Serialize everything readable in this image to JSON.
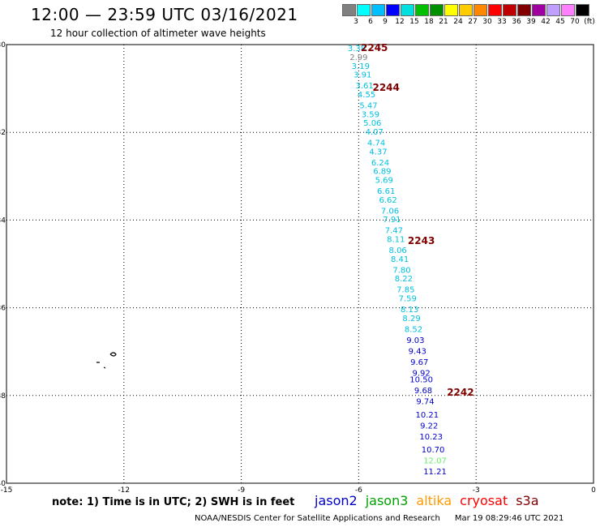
{
  "header": {
    "title": "12:00 — 23:59 UTC 03/16/2021",
    "subtitle": "12 hour collection of altimeter wave heights"
  },
  "colorbar": {
    "colors": [
      "#808080",
      "#00ffff",
      "#00bfff",
      "#0000ff",
      "#00e0e0",
      "#00c000",
      "#009000",
      "#ffff00",
      "#ffcc00",
      "#ff8800",
      "#ff0000",
      "#c00000",
      "#800000",
      "#a000a0",
      "#c0a0ff",
      "#ff80ff",
      "#000000"
    ],
    "labels": [
      "3",
      "6",
      "9",
      "12",
      "15",
      "18",
      "21",
      "24",
      "27",
      "30",
      "33",
      "36",
      "39",
      "42",
      "45",
      "70",
      "(ft)"
    ]
  },
  "chart_data": {
    "type": "scatter",
    "title": "12:00 — 23:59 UTC 03/16/2021",
    "subtitle": "12 hour collection of altimeter wave heights",
    "xlim": [
      -15,
      0
    ],
    "ylim": [
      -40,
      -30
    ],
    "x_ticks": [
      "-15",
      "-12",
      "-9",
      "-6",
      "-3",
      "0"
    ],
    "y_ticks": [
      "-30",
      "-32",
      "-34",
      "-36",
      "-38",
      "-40"
    ],
    "grid": true,
    "points": [
      {
        "lon": -6.05,
        "lat": -30.15,
        "swh": "3.38",
        "color": "#00c0e0"
      },
      {
        "lon": -6.0,
        "lat": -30.35,
        "swh": "2.99",
        "color": "#808080"
      },
      {
        "lon": -5.95,
        "lat": -30.55,
        "swh": "3.19",
        "color": "#00c0e0"
      },
      {
        "lon": -5.9,
        "lat": -30.75,
        "swh": "3.91",
        "color": "#00c0e0"
      },
      {
        "lon": -5.85,
        "lat": -31.0,
        "swh": "3.61",
        "color": "#00c0e0"
      },
      {
        "lon": -5.8,
        "lat": -31.2,
        "swh": "4.55",
        "color": "#00c0e0"
      },
      {
        "lon": -5.75,
        "lat": -31.45,
        "swh": "5.47",
        "color": "#00c0e0"
      },
      {
        "lon": -5.7,
        "lat": -31.65,
        "swh": "3.59",
        "color": "#00c0e0"
      },
      {
        "lon": -5.65,
        "lat": -31.85,
        "swh": "5.06",
        "color": "#00c0e0"
      },
      {
        "lon": -5.6,
        "lat": -32.05,
        "swh": "4.07",
        "color": "#00c0e0"
      },
      {
        "lon": -5.55,
        "lat": -32.3,
        "swh": "4.74",
        "color": "#00c0e0"
      },
      {
        "lon": -5.5,
        "lat": -32.5,
        "swh": "4.37",
        "color": "#00c0e0"
      },
      {
        "lon": -5.45,
        "lat": -32.75,
        "swh": "6.24",
        "color": "#00c0e0"
      },
      {
        "lon": -5.4,
        "lat": -32.95,
        "swh": "6.89",
        "color": "#00c0e0"
      },
      {
        "lon": -5.35,
        "lat": -33.15,
        "swh": "5.69",
        "color": "#00c0e0"
      },
      {
        "lon": -5.3,
        "lat": -33.4,
        "swh": "6.61",
        "color": "#00c0e0"
      },
      {
        "lon": -5.25,
        "lat": -33.6,
        "swh": "6.62",
        "color": "#00c0e0"
      },
      {
        "lon": -5.2,
        "lat": -33.85,
        "swh": "7.06",
        "color": "#00c0e0"
      },
      {
        "lon": -5.15,
        "lat": -34.05,
        "swh": "7.91",
        "color": "#00c0e0"
      },
      {
        "lon": -5.1,
        "lat": -34.3,
        "swh": "7.47",
        "color": "#00c0e0"
      },
      {
        "lon": -5.05,
        "lat": -34.5,
        "swh": "8.11",
        "color": "#00c0e0"
      },
      {
        "lon": -5.0,
        "lat": -34.75,
        "swh": "8.06",
        "color": "#00c0e0"
      },
      {
        "lon": -4.95,
        "lat": -34.95,
        "swh": "8.41",
        "color": "#00c0e0"
      },
      {
        "lon": -4.9,
        "lat": -35.2,
        "swh": "7.80",
        "color": "#00c0e0"
      },
      {
        "lon": -4.85,
        "lat": -35.4,
        "swh": "8.22",
        "color": "#00c0e0"
      },
      {
        "lon": -4.8,
        "lat": -35.65,
        "swh": "7.85",
        "color": "#00c0e0"
      },
      {
        "lon": -4.75,
        "lat": -35.85,
        "swh": "7.59",
        "color": "#00c0e0"
      },
      {
        "lon": -4.7,
        "lat": -36.1,
        "swh": "8.13",
        "color": "#00c0e0"
      },
      {
        "lon": -4.65,
        "lat": -36.3,
        "swh": "8.29",
        "color": "#00c0e0"
      },
      {
        "lon": -4.6,
        "lat": -36.55,
        "swh": "8.52",
        "color": "#00c0e0"
      },
      {
        "lon": -4.55,
        "lat": -36.8,
        "swh": "9.03",
        "color": "#0000cc"
      },
      {
        "lon": -4.5,
        "lat": -37.05,
        "swh": "9.43",
        "color": "#0000cc"
      },
      {
        "lon": -4.45,
        "lat": -37.3,
        "swh": "9.67",
        "color": "#0000cc"
      },
      {
        "lon": -4.4,
        "lat": -37.55,
        "swh": "9.92",
        "color": "#0000cc"
      },
      {
        "lon": -4.4,
        "lat": -37.7,
        "swh": "10.50",
        "color": "#0000cc"
      },
      {
        "lon": -4.35,
        "lat": -37.95,
        "swh": "9.68",
        "color": "#0000cc"
      },
      {
        "lon": -4.3,
        "lat": -38.2,
        "swh": "9.74",
        "color": "#0000cc"
      },
      {
        "lon": -4.25,
        "lat": -38.5,
        "swh": "10.21",
        "color": "#0000cc"
      },
      {
        "lon": -4.2,
        "lat": -38.75,
        "swh": "9.22",
        "color": "#0000cc"
      },
      {
        "lon": -4.15,
        "lat": -39.0,
        "swh": "10.23",
        "color": "#0000cc"
      },
      {
        "lon": -4.1,
        "lat": -39.3,
        "swh": "10.70",
        "color": "#0000cc"
      },
      {
        "lon": -4.05,
        "lat": -39.55,
        "swh": "12.07",
        "color": "#66ee66"
      },
      {
        "lon": -4.05,
        "lat": -39.8,
        "swh": "11.21",
        "color": "#0000cc"
      }
    ],
    "time_labels": [
      {
        "lon": -5.6,
        "lat": -30.15,
        "text": "2245"
      },
      {
        "lon": -5.3,
        "lat": -31.05,
        "text": "2244"
      },
      {
        "lon": -4.4,
        "lat": -34.55,
        "text": "2243"
      },
      {
        "lon": -3.4,
        "lat": -38.0,
        "text": "2242"
      }
    ]
  },
  "note": "note: 1) Time is in UTC; 2) SWH is in feet",
  "legend": [
    {
      "text": "jason2",
      "color": "#0000cc"
    },
    {
      "text": "jason3",
      "color": "#00a000"
    },
    {
      "text": "altika",
      "color": "#ff9900"
    },
    {
      "text": "cryosat",
      "color": "#ff0000"
    },
    {
      "text": "s3a",
      "color": "#800000"
    }
  ],
  "footer": {
    "credit": "NOAA/NESDIS Center for Satellite Applications and Research",
    "timestamp": "Mar 19 08:29:46 UTC 2021"
  }
}
